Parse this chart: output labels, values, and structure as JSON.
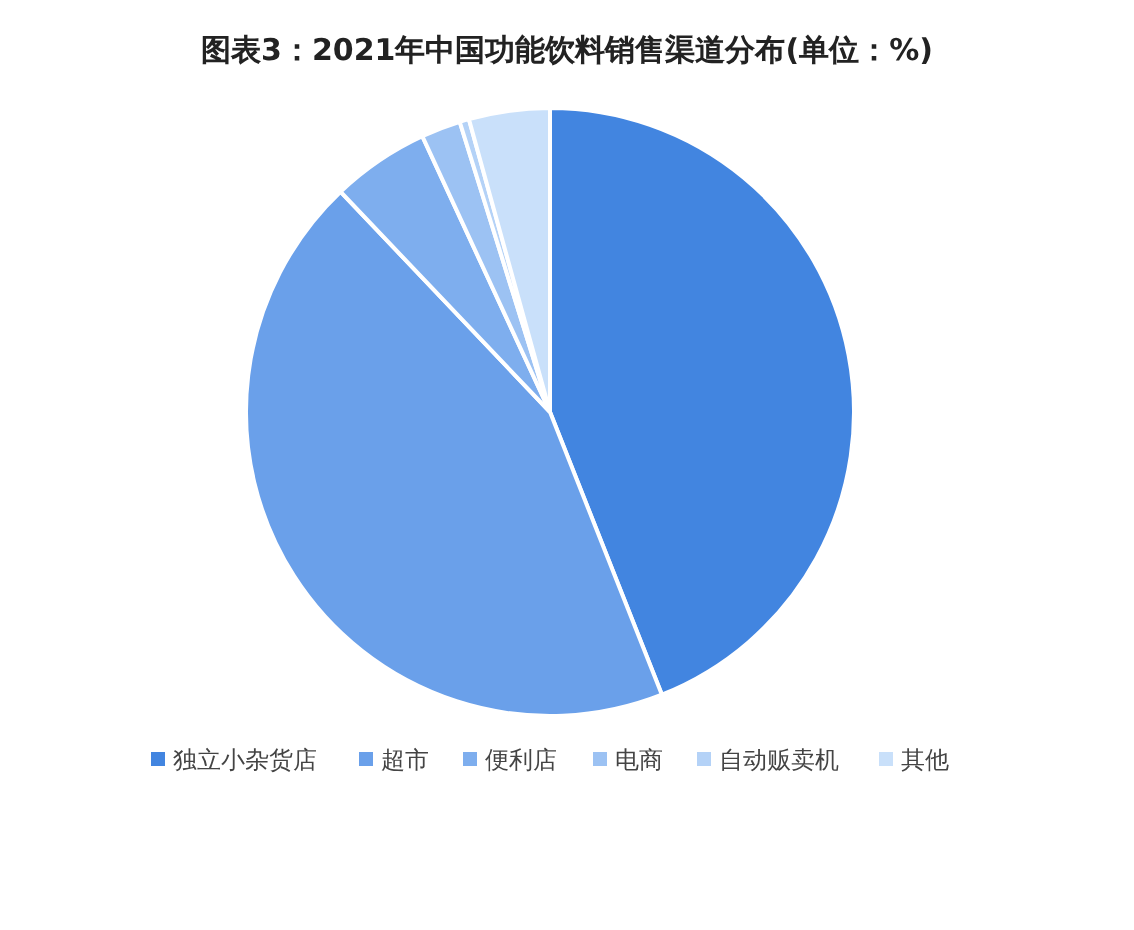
{
  "chart_data": {
    "type": "pie",
    "title": "图表3：2021年中国功能饮料销售渠道分布(单位：%)",
    "categories": [
      "独立小杂货店",
      "超市",
      "便利店",
      "电商",
      "自动贩卖机",
      "其他"
    ],
    "values": [
      44,
      43.9,
      5.2,
      2.1,
      0.5,
      4.3
    ],
    "colors": [
      "#4285e0",
      "#6aa0ea",
      "#7eaeee",
      "#9cc2f3",
      "#b4d2f7",
      "#c9e0fa"
    ],
    "legend": "bottom"
  }
}
